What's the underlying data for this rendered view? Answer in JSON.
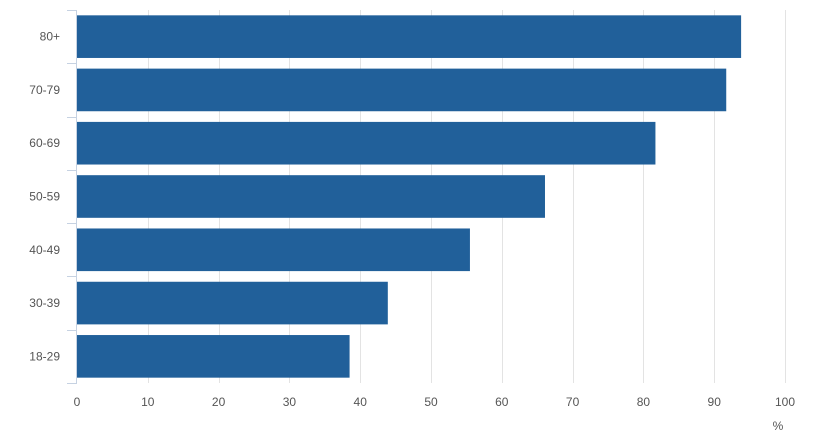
{
  "chart_data": {
    "type": "bar",
    "orientation": "horizontal",
    "categories": [
      "80+",
      "70-79",
      "60-69",
      "50-59",
      "40-49",
      "30-39",
      "18-29"
    ],
    "values": [
      93.8,
      91.7,
      81.7,
      66.1,
      55.5,
      43.9,
      38.5
    ],
    "xlabel": "%",
    "xlim": [
      0,
      100
    ],
    "xticks": [
      0,
      10,
      20,
      30,
      40,
      50,
      60,
      70,
      80,
      90,
      100
    ],
    "xtick_labels": [
      "0",
      "10",
      "20",
      "30",
      "40",
      "50",
      "60",
      "70",
      "80",
      "90",
      "100"
    ],
    "grid": "vertical",
    "legend": "none",
    "bar_color": "#21609a",
    "grid_color": "#e3e3e3",
    "axis_color": "#c6d2e2"
  }
}
